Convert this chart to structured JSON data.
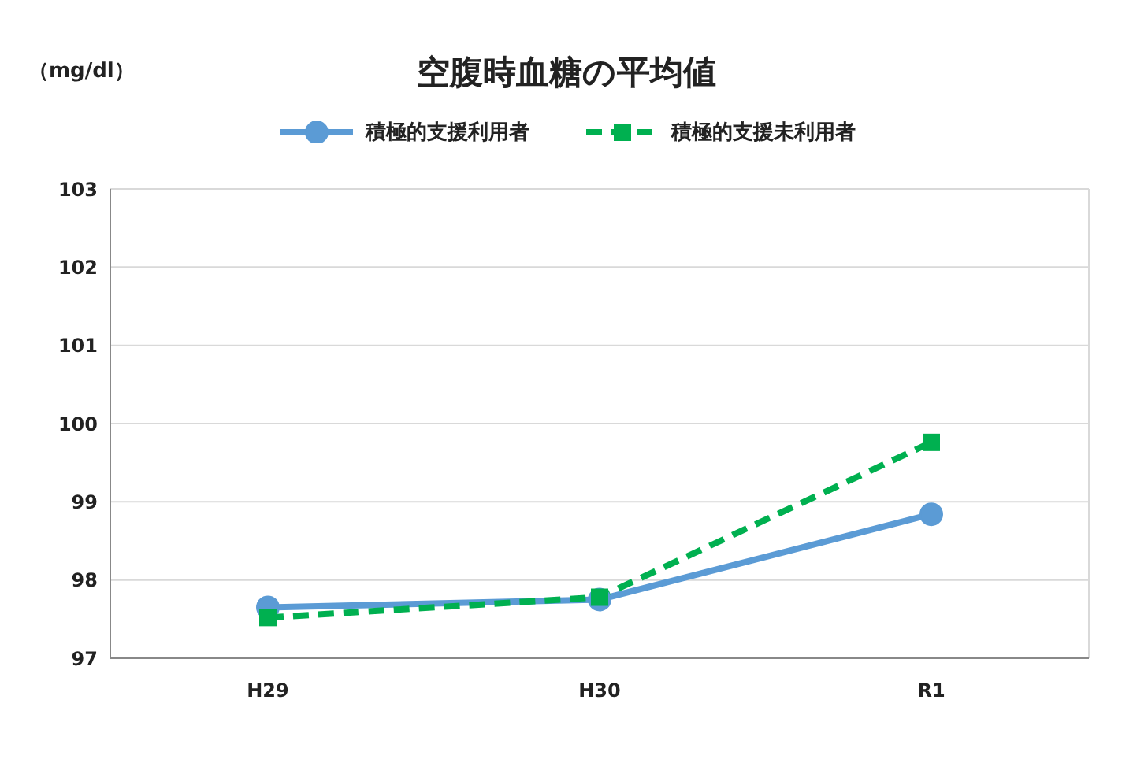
{
  "chart_data": {
    "type": "line",
    "title": "空腹時血糖の平均値",
    "ylabel": "（mg/dl）",
    "categories": [
      "H29",
      "H30",
      "R1"
    ],
    "series": [
      {
        "name": "積極的支援利用者",
        "color": "#5b9bd5",
        "values": [
          97.65,
          97.75,
          98.84
        ],
        "marker": "circle",
        "line_style": "solid"
      },
      {
        "name": "積極的支援未利用者",
        "color": "#00b050",
        "values": [
          97.52,
          97.78,
          99.76
        ],
        "marker": "square",
        "line_style": "dashed"
      }
    ],
    "ylim": [
      97,
      103
    ],
    "yticks": [
      97,
      98,
      99,
      100,
      101,
      102,
      103
    ],
    "grid": "y",
    "legend": "top"
  }
}
